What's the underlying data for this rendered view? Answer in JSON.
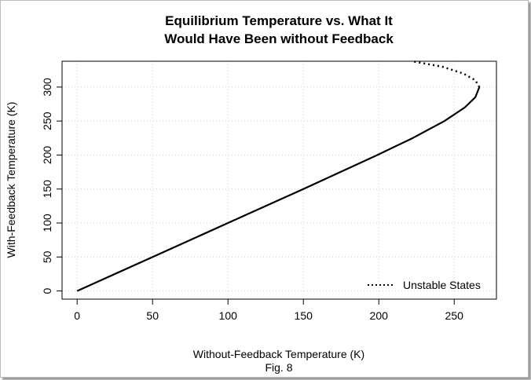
{
  "chart_data": {
    "type": "line",
    "title": [
      "Equilibrium Temperature vs. What It",
      "Would Have Been without Feedback"
    ],
    "xlabel": "Without-Feedback Temperature (K)",
    "ylabel": "With-Feedback Temperature (K)",
    "caption": "Fig. 8",
    "xlim": [
      -10,
      278
    ],
    "ylim": [
      -12,
      338
    ],
    "xticks": [
      0,
      50,
      100,
      150,
      200,
      250
    ],
    "yticks": [
      0,
      50,
      100,
      150,
      200,
      250,
      300
    ],
    "grid": true,
    "legend": {
      "placement": "bottom-right",
      "entries": [
        {
          "label": "Unstable States",
          "style": "dotted"
        }
      ]
    },
    "series": [
      {
        "style": "solid",
        "x": [
          0,
          50,
          100,
          150,
          199,
          222.5,
          243.5,
          257,
          264,
          266.7
        ],
        "y": [
          0,
          50,
          100,
          150,
          200,
          225,
          250,
          270,
          285,
          300
        ]
      },
      {
        "name": "Unstable States",
        "style": "dotted",
        "x": [
          266.7,
          264,
          256,
          242,
          222
        ],
        "y": [
          300,
          310,
          320,
          330,
          338
        ]
      }
    ]
  }
}
